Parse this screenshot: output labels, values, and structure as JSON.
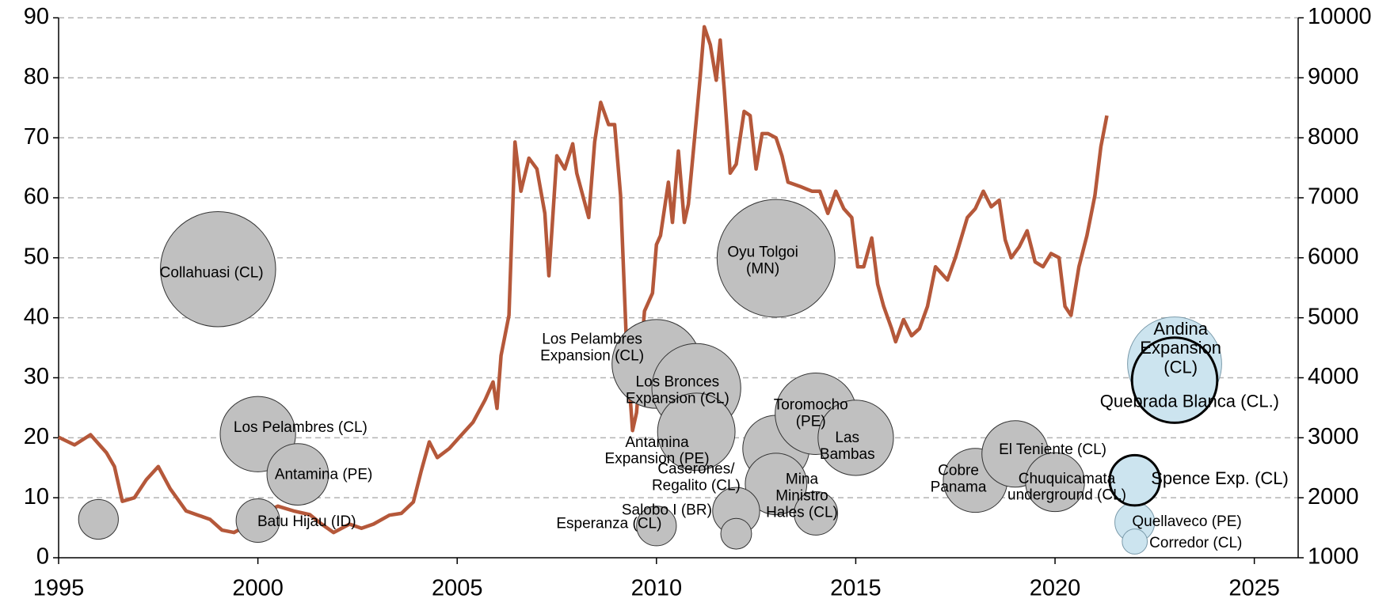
{
  "chart_data": {
    "type": "bubble",
    "xlim": [
      1995,
      2026.1
    ],
    "xticks": [
      1995,
      2000,
      2005,
      2010,
      2015,
      2020,
      2025
    ],
    "ylim": [
      0,
      90
    ],
    "yticks": [
      0,
      10,
      20,
      30,
      40,
      50,
      60,
      70,
      80,
      90
    ],
    "y2lim": [
      1000,
      10000
    ],
    "y2ticks": [
      1000,
      2000,
      3000,
      4000,
      5000,
      6000,
      7000,
      8000,
      9000,
      10000
    ],
    "grid": true,
    "series": [
      {
        "type": "bubble",
        "color": "#c0c0c0",
        "edge_color": "#333333",
        "edge_width": 1,
        "x": [
          1996,
          1999,
          2000,
          2001,
          2000,
          2010,
          2011,
          2011,
          2010,
          2013,
          2013,
          2013,
          2012,
          2012,
          2014,
          2015,
          2014,
          2018,
          2019,
          2020
        ],
        "values": [
          6.4,
          48.1,
          20.6,
          13.9,
          6.2,
          32.3,
          28.3,
          21,
          5.3,
          49.9,
          18.2,
          12.3,
          7.8,
          4,
          24,
          20,
          7.4,
          12.9,
          17.3,
          12.6
        ],
        "sizes": [
          5,
          42,
          18,
          12,
          6,
          25,
          25,
          19,
          5,
          44,
          14,
          12,
          7,
          3,
          21,
          18,
          6,
          13,
          14,
          11
        ],
        "labels": [
          null,
          "Collahuasi (CL)",
          "Los Pelambres (CL)",
          "Antamina (PE)",
          "Batu Hijau (ID)",
          "Los Pelambres\nExpansion (CL)",
          "Los Bronces\nExpansion (CL)",
          "Antamina\nExpansion (PE)",
          "Esperanza (CL)",
          "Oyu Tolgoi\n(MN)",
          "Caserones/\nRegalito (CL)",
          "Mina\nMinistro\nHales (CL)",
          "Salobo I (BR)",
          null,
          "Toromocho\n(PE)",
          "Las\nBambas",
          null,
          "Cobre\nPanama",
          "El Teniente (CL)",
          "Chuquicamata\nunderground (CL)"
        ]
      },
      {
        "type": "bubble",
        "color": "#cce4ef",
        "edge_color": "#7a9aaa",
        "edge_width": 1,
        "x": [
          2023,
          2022,
          2022
        ],
        "values": [
          32.3,
          5.9,
          2.7
        ],
        "sizes": [
          28,
          5,
          2
        ],
        "labels": [
          "Andina\nExpansion\n(CL)",
          "Quellaveco (PE)",
          "Corredor (CL)"
        ]
      },
      {
        "type": "bubble",
        "color": "#cce4ef",
        "edge_color": "#000000",
        "edge_width": 3,
        "x": [
          2023,
          2022
        ],
        "values": [
          29.6,
          12.9
        ],
        "sizes": [
          23,
          8
        ],
        "labels": [
          "Quebrada Blanca (CL.)",
          "Spence Exp. (CL)"
        ]
      },
      {
        "type": "line",
        "axis": "y2",
        "color": "#b5583a",
        "x": [
          1995.0,
          1995.4,
          1995.8,
          1996.2,
          1996.4,
          1996.6,
          1996.9,
          1997.2,
          1997.5,
          1997.8,
          1998.2,
          1998.5,
          1998.8,
          1999.1,
          1999.4,
          1999.7,
          2000.0,
          2000.5,
          2000.9,
          2001.3,
          2001.6,
          2001.9,
          2002.3,
          2002.6,
          2002.9,
          2003.3,
          2003.6,
          2003.9,
          2004.1,
          2004.3,
          2004.5,
          2004.8,
          2005.1,
          2005.4,
          2005.7,
          2005.9,
          2006.0,
          2006.1,
          2006.3,
          2006.45,
          2006.6,
          2006.8,
          2007.0,
          2007.2,
          2007.3,
          2007.5,
          2007.7,
          2007.9,
          2008.0,
          2008.3,
          2008.45,
          2008.6,
          2008.8,
          2008.95,
          2009.1,
          2009.25,
          2009.4,
          2009.5,
          2009.7,
          2009.9,
          2010.0,
          2010.1,
          2010.3,
          2010.4,
          2010.55,
          2010.7,
          2010.8,
          2011.0,
          2011.1,
          2011.2,
          2011.35,
          2011.5,
          2011.6,
          2011.7,
          2011.85,
          2012.0,
          2012.2,
          2012.35,
          2012.5,
          2012.65,
          2012.8,
          2013.0,
          2013.15,
          2013.3,
          2013.6,
          2013.9,
          2014.1,
          2014.3,
          2014.5,
          2014.7,
          2014.9,
          2015.05,
          2015.2,
          2015.4,
          2015.55,
          2015.7,
          2015.9,
          2016.0,
          2016.2,
          2016.4,
          2016.6,
          2016.8,
          2017.0,
          2017.3,
          2017.5,
          2017.8,
          2018.0,
          2018.2,
          2018.4,
          2018.6,
          2018.75,
          2018.9,
          2019.1,
          2019.3,
          2019.5,
          2019.7,
          2019.9,
          2020.1,
          2020.25,
          2020.4,
          2020.6,
          2020.8,
          2021.0,
          2021.15,
          2021.3
        ],
        "values": [
          3010,
          2880,
          3050,
          2750,
          2520,
          1940,
          2000,
          2300,
          2520,
          2150,
          1780,
          1710,
          1640,
          1460,
          1420,
          1530,
          1710,
          1860,
          1780,
          1720,
          1560,
          1420,
          1560,
          1490,
          1560,
          1710,
          1740,
          1930,
          2450,
          2930,
          2670,
          2820,
          3040,
          3260,
          3630,
          3930,
          3490,
          4370,
          5040,
          7930,
          7110,
          7660,
          7480,
          6740,
          5700,
          7700,
          7480,
          7900,
          7410,
          6670,
          7930,
          8590,
          8220,
          8220,
          7040,
          4520,
          3120,
          3420,
          5110,
          5410,
          6220,
          6370,
          7260,
          6590,
          7780,
          6590,
          6890,
          8300,
          9040,
          9850,
          9550,
          8960,
          9630,
          8810,
          7410,
          7560,
          8440,
          8370,
          7480,
          8070,
          8070,
          8000,
          7700,
          7260,
          7190,
          7110,
          7110,
          6740,
          7110,
          6820,
          6670,
          5850,
          5850,
          6330,
          5560,
          5190,
          4820,
          4600,
          4970,
          4700,
          4820,
          5190,
          5850,
          5630,
          6000,
          6670,
          6820,
          7110,
          6850,
          6960,
          6300,
          6000,
          6180,
          6450,
          5930,
          5850,
          6070,
          6000,
          5190,
          5040,
          5850,
          6370,
          7040,
          7850,
          8370
        ]
      }
    ]
  }
}
